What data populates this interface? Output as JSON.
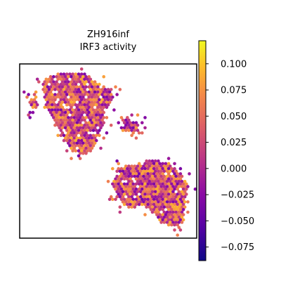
{
  "chart_data": {
    "type": "scatter",
    "title_lines": [
      "ZH916inf",
      "IRF3 activity"
    ],
    "xlabel": "",
    "ylabel": "",
    "colorbar": {
      "colormap": "plasma",
      "range": [
        -0.088,
        0.122
      ],
      "ticks": [
        0.1,
        0.075,
        0.05,
        0.025,
        0.0,
        -0.025,
        -0.05,
        -0.075
      ],
      "tick_labels": [
        "0.100",
        "0.075",
        "0.050",
        "0.025",
        "0.000",
        "−0.025",
        "−0.050",
        "−0.075"
      ]
    },
    "axes_ticks": "none",
    "grid": false,
    "clusters": [
      {
        "name": "upper",
        "x": [
          0.05,
          0.55
        ],
        "y": [
          0.05,
          0.56
        ],
        "mean_value": 0.015
      },
      {
        "name": "lower",
        "x": [
          0.53,
          0.94
        ],
        "y": [
          0.55,
          0.95
        ],
        "mean_value": 0.02
      }
    ]
  }
}
